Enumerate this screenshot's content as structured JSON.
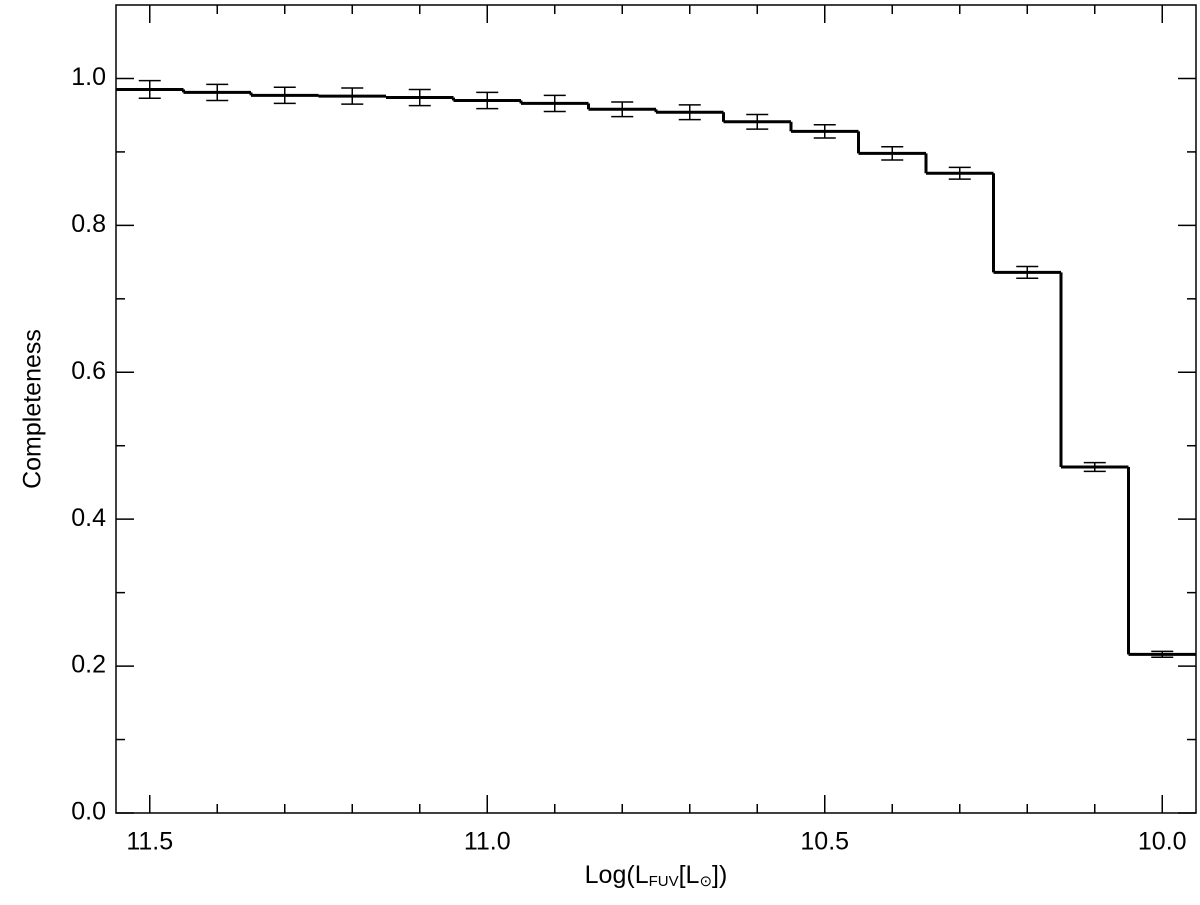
{
  "chart_data": {
    "type": "histogram",
    "xlabel_parts": [
      "Log(L",
      "FUV",
      "[L",
      "⊙",
      "])"
    ],
    "ylabel": "Completeness",
    "bins": [
      11.55,
      11.45,
      11.35,
      11.25,
      11.15,
      11.05,
      10.95,
      10.85,
      10.75,
      10.65,
      10.55,
      10.45,
      10.35,
      10.25,
      10.15,
      10.05,
      9.95
    ],
    "values": [
      0.985,
      0.981,
      0.977,
      0.976,
      0.974,
      0.97,
      0.966,
      0.958,
      0.954,
      0.941,
      0.928,
      0.898,
      0.871,
      0.736,
      0.471,
      0.216
    ],
    "errors": [
      0.012,
      0.011,
      0.011,
      0.011,
      0.011,
      0.011,
      0.011,
      0.01,
      0.01,
      0.01,
      0.009,
      0.009,
      0.008,
      0.008,
      0.006,
      0.004
    ],
    "color": "#000000",
    "xlim": [
      11.55,
      9.95
    ],
    "xticks": [
      11.5,
      {
        "value": 11,
        "label": "11.0"
      },
      10.5,
      {
        "value": 10,
        "label": "10.0"
      }
    ],
    "xminorticks": [
      11.4,
      11.3,
      11.2,
      11.1,
      10.9,
      10.8,
      10.7,
      10.6,
      10.4,
      10.3,
      10.2,
      10.1
    ],
    "ylim": [
      0,
      1.1
    ],
    "yticks": [
      {
        "value": 0,
        "label": "0.0"
      },
      0.2,
      0.4,
      0.6,
      0.8,
      {
        "value": 1,
        "label": "1.0"
      }
    ],
    "yminorticks": [
      0.1,
      0.3,
      0.5,
      0.7,
      0.9
    ],
    "grid": false
  }
}
